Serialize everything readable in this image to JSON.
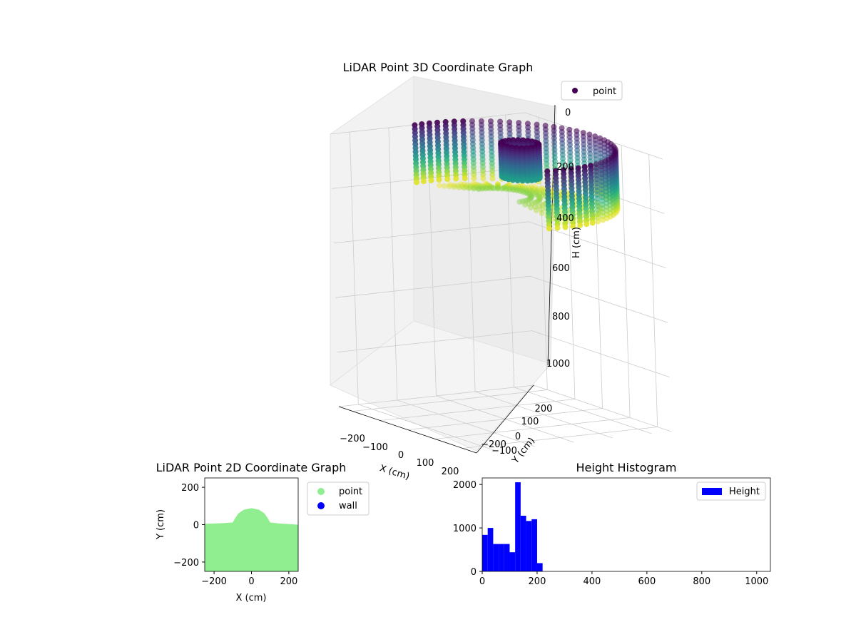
{
  "figure": {
    "colors": {
      "background": "#ffffff",
      "pane": "#f2f2f2",
      "grid": "#cccccc",
      "point2d": "#90ee90",
      "wall2d": "#0000ff",
      "hist": "#0000ff",
      "legend3d_marker": "#440154"
    }
  },
  "chart_data": [
    {
      "id": "lidar3d",
      "type": "scatter",
      "title": "LiDAR Point 3D Coordinate Graph",
      "xlabel": "X (cm)",
      "ylabel": "Y (cm)",
      "zlabel": "H (cm)",
      "xlim": [
        -250,
        250
      ],
      "ylim": [
        -250,
        250
      ],
      "zlim": [
        0,
        1000
      ],
      "z_inverted": true,
      "xticks": [
        "−200",
        "−100",
        "0",
        "100",
        "200"
      ],
      "yticks": [
        "−200",
        "−100",
        "0",
        "100",
        "200"
      ],
      "zticks": [
        "0",
        "200",
        "400",
        "600",
        "800",
        "1000"
      ],
      "colormap": "viridis",
      "legend": [
        {
          "label": "point",
          "color": "#440154"
        }
      ],
      "structures": [
        {
          "name": "outer wall arc",
          "radius": 250,
          "angle_from_deg": -10,
          "angle_to_deg": 190,
          "h_from": 0,
          "h_to": 220
        },
        {
          "name": "inner column",
          "center": [
            0,
            60
          ],
          "radius": 40,
          "h_from": 0,
          "h_to": 120
        },
        {
          "name": "floor band",
          "radius_from": 60,
          "radius_to": 230,
          "h": 180
        }
      ]
    },
    {
      "id": "lidar2d",
      "type": "scatter",
      "title": "LiDAR Point 2D Coordinate Graph",
      "xlabel": "X (cm)",
      "ylabel": "Y (cm)",
      "xlim": [
        -250,
        250
      ],
      "ylim": [
        -250,
        250
      ],
      "xticks": [
        -200,
        0,
        200
      ],
      "yticks": [
        -200,
        0,
        200
      ],
      "xtick_labels": [
        "−200",
        "0",
        "200"
      ],
      "ytick_labels": [
        "−200",
        "0",
        "200"
      ],
      "legend": [
        {
          "label": "point",
          "color": "#90ee90"
        },
        {
          "label": "wall",
          "color": "#0000ff"
        }
      ],
      "region": {
        "boundary_y_at_x": [
          [
            -250,
            5
          ],
          [
            -150,
            8
          ],
          [
            -100,
            12
          ],
          [
            -90,
            30
          ],
          [
            -70,
            60
          ],
          [
            -40,
            80
          ],
          [
            0,
            88
          ],
          [
            40,
            80
          ],
          [
            70,
            60
          ],
          [
            90,
            30
          ],
          [
            100,
            12
          ],
          [
            150,
            6
          ],
          [
            250,
            0
          ]
        ],
        "bottom_y": -250
      }
    },
    {
      "id": "height_hist",
      "type": "bar",
      "title": "Height Histogram",
      "xlim": [
        0,
        1050
      ],
      "ylim": [
        0,
        2150
      ],
      "xticks": [
        0,
        200,
        400,
        600,
        800,
        1000
      ],
      "yticks": [
        0,
        1000,
        2000
      ],
      "xtick_labels": [
        "0",
        "200",
        "400",
        "600",
        "800",
        "1000"
      ],
      "ytick_labels": [
        "0",
        "1000",
        "2000"
      ],
      "bin_width": 20,
      "bins": [
        [
          0,
          20,
          840
        ],
        [
          20,
          40,
          1000
        ],
        [
          40,
          60,
          630
        ],
        [
          60,
          80,
          630
        ],
        [
          80,
          100,
          630
        ],
        [
          100,
          120,
          440
        ],
        [
          120,
          140,
          2050
        ],
        [
          140,
          160,
          1280
        ],
        [
          160,
          180,
          1160
        ],
        [
          180,
          200,
          1200
        ],
        [
          200,
          220,
          190
        ]
      ],
      "legend": [
        {
          "label": "Height",
          "color": "#0000ff"
        }
      ]
    }
  ]
}
